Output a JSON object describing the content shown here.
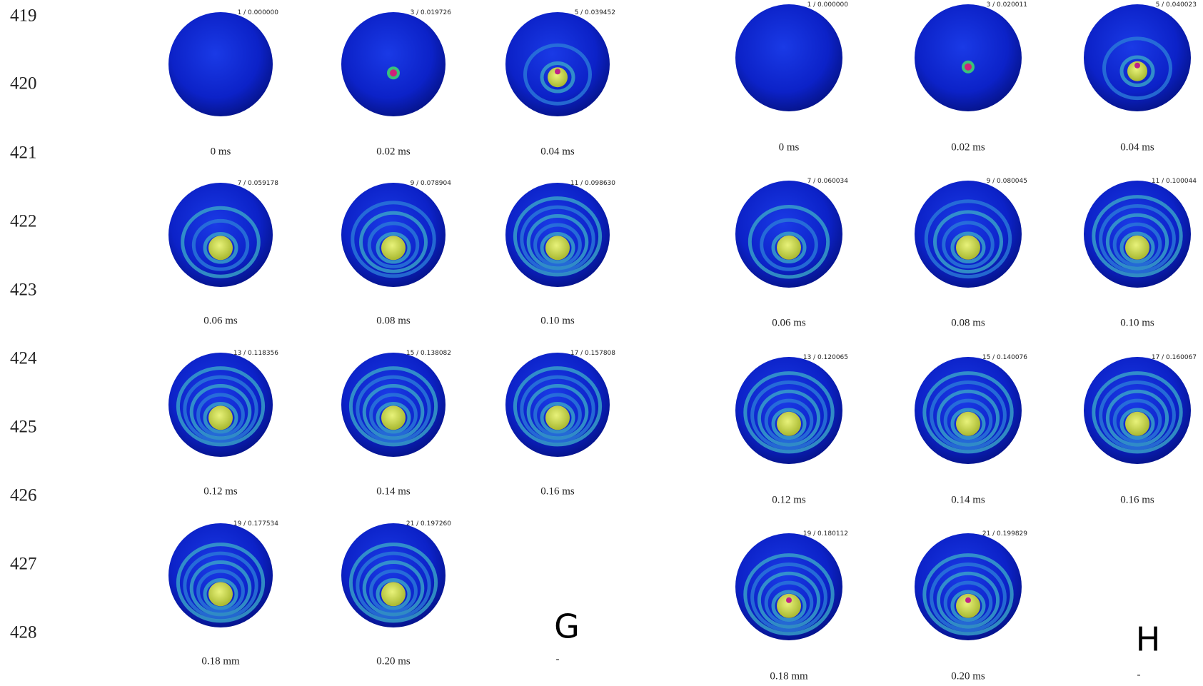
{
  "line_numbers": [
    "419",
    "420",
    "421",
    "422",
    "423",
    "424",
    "425",
    "426",
    "427",
    "428"
  ],
  "panels": [
    {
      "label": "G",
      "mark": "-",
      "frames": [
        {
          "header": "1 / 0.000000",
          "caption": "0 ms"
        },
        {
          "header": "3 / 0.019726",
          "caption": "0.02 ms"
        },
        {
          "header": "5 / 0.039452",
          "caption": "0.04 ms"
        },
        {
          "header": "7 / 0.059178",
          "caption": "0.06 ms"
        },
        {
          "header": "9 / 0.078904",
          "caption": "0.08 ms"
        },
        {
          "header": "11 / 0.098630",
          "caption": "0.10 ms"
        },
        {
          "header": "13 / 0.118356",
          "caption": "0.12 ms"
        },
        {
          "header": "15 / 0.138082",
          "caption": "0.14 ms"
        },
        {
          "header": "17 / 0.157808",
          "caption": "0.16 ms"
        },
        {
          "header": "19 / 0.177534",
          "caption": "0.18 mm"
        },
        {
          "header": "21 / 0.197260",
          "caption": "0.20 ms"
        }
      ]
    },
    {
      "label": "H",
      "mark": "-",
      "frames": [
        {
          "header": "1 / 0.000000",
          "caption": "0 ms"
        },
        {
          "header": "3 / 0.020011",
          "caption": "0.02 ms"
        },
        {
          "header": "5 / 0.040023",
          "caption": "0.04 ms"
        },
        {
          "header": "7 / 0.060034",
          "caption": "0.06 ms"
        },
        {
          "header": "9 / 0.080045",
          "caption": "0.08 ms"
        },
        {
          "header": "11 / 0.100044",
          "caption": "0.10 ms"
        },
        {
          "header": "13 / 0.120065",
          "caption": "0.12 ms"
        },
        {
          "header": "15 / 0.140076",
          "caption": "0.14 ms"
        },
        {
          "header": "17 / 0.160067",
          "caption": "0.16 ms"
        },
        {
          "header": "19 / 0.180112",
          "caption": "0.18 mm"
        },
        {
          "header": "21 / 0.199829",
          "caption": "0.20 ms"
        }
      ]
    }
  ]
}
